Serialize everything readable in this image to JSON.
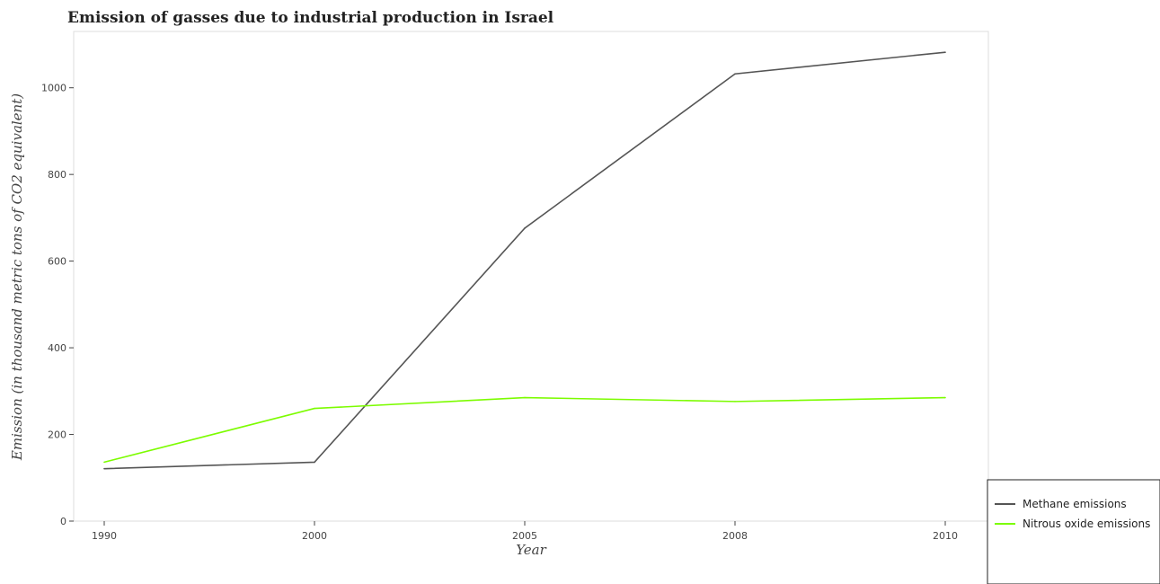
{
  "chart_data": {
    "type": "line",
    "title": "Emission of gasses due to industrial production in Israel",
    "xlabel": "Year",
    "ylabel": "Emission (in thousand metric tons of CO2 equivalent)",
    "categories": [
      "1990",
      "2000",
      "2005",
      "2008",
      "2010"
    ],
    "ylim": [
      0,
      1130
    ],
    "yticks": [
      0,
      200,
      400,
      600,
      800,
      1000
    ],
    "grid": false,
    "legend_position": "bottom-right",
    "series": [
      {
        "name": "Methane emissions",
        "color": "#555555",
        "values": [
          121,
          136,
          676,
          1032,
          1082
        ]
      },
      {
        "name": "Nitrous oxide emissions",
        "color": "#7cfc00",
        "values": [
          136,
          260,
          285,
          276,
          285
        ]
      }
    ]
  }
}
